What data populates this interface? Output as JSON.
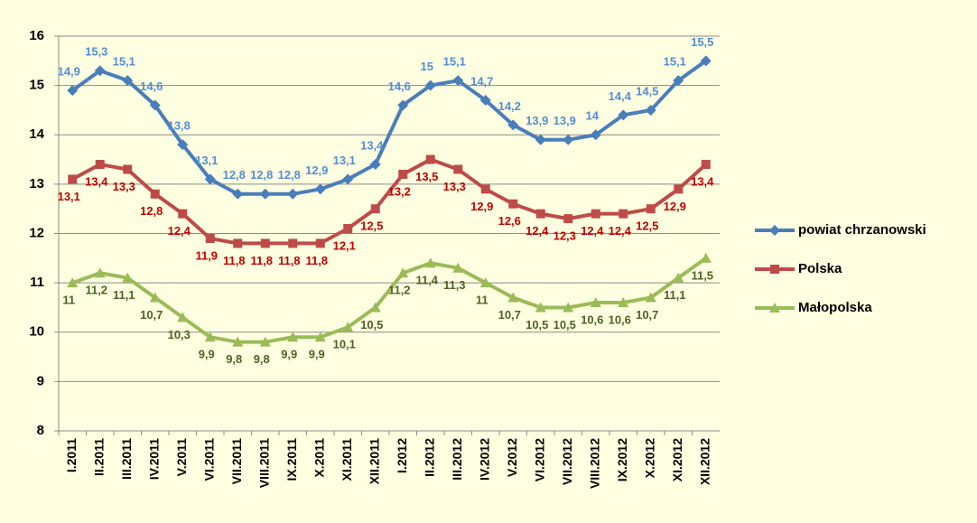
{
  "chart_data": {
    "type": "line",
    "categories": [
      "I.2011",
      "II.2011",
      "III.2011",
      "IV.2011",
      "V.2011",
      "VI.2011",
      "VII.2011",
      "VIII.2011",
      "IX.2011",
      "X.2011",
      "XI.2011",
      "XII.2011",
      "I.2012",
      "II.2012",
      "III.2012",
      "IV.2012",
      "V.2012",
      "VI.2012",
      "VII.2012",
      "VIII.2012",
      "IX.2012",
      "X.2012",
      "XI.2012",
      "XII.2012"
    ],
    "series": [
      {
        "name": "powiat chrzanowski",
        "color": "#4a7ebb",
        "label_color": "#558ed5",
        "marker": "diamond",
        "label_position": "above",
        "values": [
          14.9,
          15.3,
          15.1,
          14.6,
          13.8,
          13.1,
          12.8,
          12.8,
          12.8,
          12.9,
          13.1,
          13.4,
          14.6,
          15,
          15.1,
          14.7,
          14.2,
          13.9,
          13.9,
          14,
          14.4,
          14.5,
          15.1,
          15.5
        ],
        "value_labels": [
          "14,9",
          "15,3",
          "15,1",
          "14,6",
          "13,8",
          "13,1",
          "12,8",
          "12,8",
          "12,8",
          "12,9",
          "13,1",
          "13,4",
          "14,6",
          "15",
          "15,1",
          "14,7",
          "14,2",
          "13,9",
          "13,9",
          "14",
          "14,4",
          "14,5",
          "15,1",
          "15,5"
        ]
      },
      {
        "name": "Polska",
        "color": "#be4b48",
        "label_color": "#c00000",
        "marker": "square",
        "label_position": "below",
        "values": [
          13.1,
          13.4,
          13.3,
          12.8,
          12.4,
          11.9,
          11.8,
          11.8,
          11.8,
          11.8,
          12.1,
          12.5,
          13.2,
          13.5,
          13.3,
          12.9,
          12.6,
          12.4,
          12.3,
          12.4,
          12.4,
          12.5,
          12.9,
          13.4
        ],
        "value_labels": [
          "13,1",
          "13,4",
          "13,3",
          "12,8",
          "12,4",
          "11,9",
          "11,8",
          "11,8",
          "11,8",
          "11,8",
          "12,1",
          "12,5",
          "13,2",
          "13,5",
          "13,3",
          "12,9",
          "12,6",
          "12,4",
          "12,3",
          "12,4",
          "12,4",
          "12,5",
          "12,9",
          "13,4"
        ]
      },
      {
        "name": "Małopolska",
        "color": "#9bbb59",
        "label_color": "#4f6228",
        "marker": "triangle",
        "label_position": "below",
        "values": [
          11,
          11.2,
          11.1,
          10.7,
          10.3,
          9.9,
          9.8,
          9.8,
          9.9,
          9.9,
          10.1,
          10.5,
          11.2,
          11.4,
          11.3,
          11,
          10.7,
          10.5,
          10.5,
          10.6,
          10.6,
          10.7,
          11.1,
          11.5
        ],
        "value_labels": [
          "11",
          "11,2",
          "11,1",
          "10,7",
          "10,3",
          "9,9",
          "9,8",
          "9,8",
          "9,9",
          "9,9",
          "10,1",
          "10,5",
          "11,2",
          "11,4",
          "11,3",
          "11",
          "10,7",
          "10,5",
          "10,5",
          "10,6",
          "10,6",
          "10,7",
          "11,1",
          "11,5"
        ]
      }
    ],
    "ylim": [
      8,
      16
    ],
    "yticks": [
      8,
      9,
      10,
      11,
      12,
      13,
      14,
      15,
      16
    ],
    "grid": true,
    "legend": "right",
    "background": "#fefee0"
  }
}
